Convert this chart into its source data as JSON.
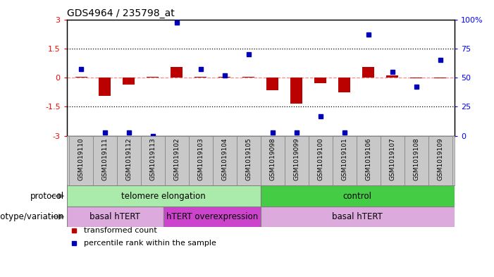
{
  "title": "GDS4964 / 235798_at",
  "samples": [
    "GSM1019110",
    "GSM1019111",
    "GSM1019112",
    "GSM1019113",
    "GSM1019102",
    "GSM1019103",
    "GSM1019104",
    "GSM1019105",
    "GSM1019098",
    "GSM1019099",
    "GSM1019100",
    "GSM1019101",
    "GSM1019106",
    "GSM1019107",
    "GSM1019108",
    "GSM1019109"
  ],
  "transformed_count": [
    0.05,
    -0.95,
    -0.35,
    0.02,
    0.55,
    0.05,
    0.05,
    0.05,
    -0.65,
    -1.35,
    -0.3,
    -0.75,
    0.55,
    0.1,
    -0.05,
    -0.05
  ],
  "percentile_rank": [
    57,
    3,
    3,
    0,
    97,
    57,
    52,
    70,
    3,
    3,
    17,
    3,
    87,
    55,
    42,
    65
  ],
  "ylim": [
    -3,
    3
  ],
  "y2lim": [
    0,
    100
  ],
  "yticks": [
    -3,
    -1.5,
    0,
    1.5,
    3
  ],
  "y2ticks": [
    0,
    25,
    50,
    75,
    100
  ],
  "protocol_groups": [
    {
      "label": "telomere elongation",
      "start": 0,
      "end": 8,
      "color": "#aaeaaa"
    },
    {
      "label": "control",
      "start": 8,
      "end": 16,
      "color": "#44cc44"
    }
  ],
  "genotype_groups": [
    {
      "label": "basal hTERT",
      "start": 0,
      "end": 4,
      "color": "#ddaadd"
    },
    {
      "label": "hTERT overexpression",
      "start": 4,
      "end": 8,
      "color": "#cc44cc"
    },
    {
      "label": "basal hTERT",
      "start": 8,
      "end": 16,
      "color": "#ddaadd"
    }
  ],
  "bar_color": "#BB0000",
  "dot_color": "#0000BB",
  "dashed_line_color": "#FF8888",
  "dotted_line_color": "#000000",
  "legend_bar_label": "transformed count",
  "legend_dot_label": "percentile rank within the sample",
  "bg_color": "#FFFFFF",
  "plot_bg": "#FFFFFF",
  "tick_bg": "#C8C8C8"
}
